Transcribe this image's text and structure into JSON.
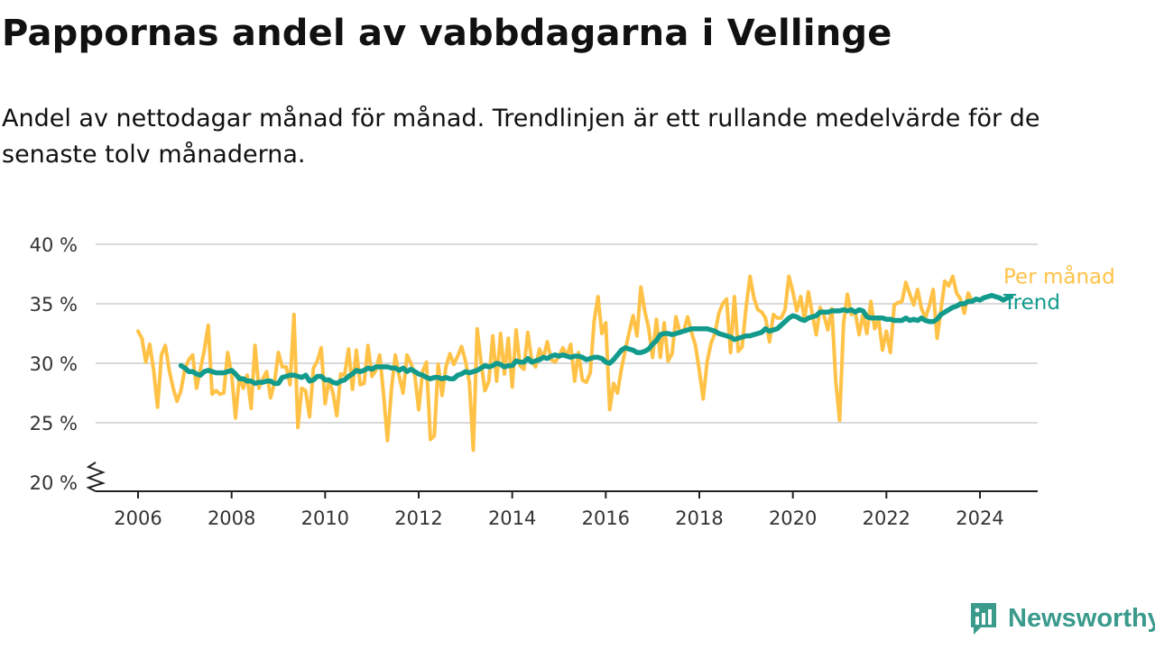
{
  "header": {
    "title": "Pappornas andel av vabbdagarna i Vellinge",
    "subtitle": "Andel av nettodagar månad för månad. Trendlinjen är ett rullande medelvärde för de senaste tolv månaderna."
  },
  "brand": {
    "name": "Newsworthy",
    "icon": "newsworthy-logo-icon",
    "color": "#3a9a8c"
  },
  "chart_data": {
    "type": "line",
    "title": "Pappornas andel av vabbdagarna i Vellinge",
    "x_ticks": [
      2006,
      2008,
      2010,
      2012,
      2014,
      2016,
      2018,
      2020,
      2022,
      2024
    ],
    "y_ticks": [
      20,
      25,
      30,
      35,
      40
    ],
    "y_tick_labels": [
      "20 %",
      "25 %",
      "30 %",
      "35 %",
      "40 %"
    ],
    "xlim": [
      2005.1,
      2025.2
    ],
    "ylim": [
      19.2,
      40
    ],
    "y_axis_break": true,
    "grid": "horizontal",
    "legend": "direct labels at line ends (right)",
    "series": [
      {
        "name": "Per månad",
        "color": "#ffc247",
        "start": 2006.0,
        "step_months": 1,
        "values": [
          32.7,
          32.1,
          30.1,
          31.6,
          29.4,
          26.3,
          30.7,
          31.5,
          29.4,
          27.9,
          26.8,
          27.7,
          29.5,
          30.3,
          30.7,
          27.9,
          29.5,
          31.1,
          33.2,
          27.4,
          27.7,
          27.4,
          27.5,
          30.9,
          29.1,
          25.4,
          28.9,
          27.9,
          29.0,
          26.2,
          31.5,
          27.9,
          28.7,
          29.3,
          27.1,
          28.4,
          30.9,
          29.7,
          29.7,
          28.2,
          34.1,
          24.6,
          27.9,
          27.7,
          25.5,
          29.6,
          30.2,
          31.3,
          26.6,
          28.6,
          27.5,
          25.6,
          29.1,
          29.0,
          31.2,
          27.8,
          31.1,
          28.2,
          28.3,
          31.5,
          28.9,
          29.4,
          30.7,
          27.4,
          23.5,
          27.8,
          30.7,
          28.9,
          27.5,
          30.7,
          30.0,
          29.0,
          26.1,
          29.3,
          30.1,
          23.6,
          23.9,
          29.9,
          27.3,
          29.7,
          30.8,
          29.9,
          30.6,
          31.4,
          30.2,
          28.4,
          22.7,
          32.9,
          30.1,
          27.7,
          28.5,
          32.3,
          28.5,
          32.5,
          29.1,
          32.1,
          28.0,
          32.8,
          29.8,
          29.5,
          32.6,
          30.2,
          29.7,
          31.2,
          30.4,
          31.8,
          30.3,
          30.1,
          30.6,
          31.3,
          30.6,
          31.6,
          28.5,
          30.9,
          28.6,
          28.4,
          29.2,
          33.5,
          35.6,
          32.5,
          33.4,
          26.1,
          28.3,
          27.5,
          29.5,
          31.1,
          32.6,
          34.0,
          32.3,
          36.4,
          34.4,
          33.0,
          30.5,
          33.7,
          30.5,
          33.4,
          30.2,
          30.8,
          33.9,
          32.6,
          32.7,
          33.9,
          32.6,
          31.5,
          29.4,
          27.0,
          30.1,
          31.7,
          32.5,
          34.2,
          35.0,
          35.4,
          30.9,
          35.6,
          31.0,
          31.4,
          34.7,
          37.3,
          35.5,
          34.5,
          34.3,
          33.8,
          31.8,
          34.1,
          33.8,
          33.8,
          34.5,
          37.3,
          36.0,
          34.4,
          35.6,
          33.7,
          36.0,
          34.1,
          32.4,
          34.7,
          34.0,
          32.8,
          34.6,
          28.5,
          25.2,
          33.3,
          35.8,
          34.1,
          34.3,
          32.4,
          34.1,
          32.5,
          35.2,
          32.9,
          33.7,
          31.1,
          32.7,
          30.9,
          34.9,
          35.1,
          35.2,
          36.8,
          35.8,
          34.9,
          36.2,
          34.6,
          33.8,
          34.8,
          36.2,
          32.1,
          34.5,
          36.9,
          36.5,
          37.3,
          35.9,
          35.4,
          34.2,
          35.9,
          35.2
        ]
      },
      {
        "name": "Trend",
        "color": "#129b8c",
        "start": 2006.917,
        "step_months": 1,
        "values": [
          29.8,
          29.6,
          29.3,
          29.3,
          29.1,
          29.0,
          29.3,
          29.4,
          29.3,
          29.2,
          29.2,
          29.2,
          29.3,
          29.4,
          29.1,
          28.7,
          28.7,
          28.5,
          28.5,
          28.3,
          28.4,
          28.4,
          28.5,
          28.5,
          28.3,
          28.3,
          28.8,
          28.9,
          29.0,
          29.0,
          28.9,
          28.8,
          29.0,
          28.5,
          28.6,
          28.9,
          28.9,
          28.6,
          28.6,
          28.4,
          28.3,
          28.5,
          28.6,
          28.9,
          29.1,
          29.4,
          29.3,
          29.4,
          29.6,
          29.5,
          29.7,
          29.7,
          29.7,
          29.7,
          29.6,
          29.6,
          29.4,
          29.6,
          29.3,
          29.5,
          29.3,
          29.1,
          29.0,
          28.8,
          28.7,
          28.8,
          28.8,
          28.7,
          28.8,
          28.7,
          28.7,
          29.0,
          29.1,
          29.3,
          29.2,
          29.3,
          29.4,
          29.6,
          29.8,
          29.7,
          29.8,
          30.0,
          29.9,
          29.7,
          29.8,
          29.8,
          30.2,
          30.1,
          30.1,
          30.4,
          30.1,
          30.2,
          30.3,
          30.5,
          30.4,
          30.6,
          30.7,
          30.6,
          30.7,
          30.6,
          30.5,
          30.6,
          30.6,
          30.5,
          30.3,
          30.4,
          30.5,
          30.5,
          30.4,
          30.1,
          30.0,
          30.3,
          30.7,
          31.1,
          31.3,
          31.2,
          31.1,
          30.9,
          30.9,
          31.0,
          31.2,
          31.6,
          31.9,
          32.4,
          32.5,
          32.5,
          32.4,
          32.5,
          32.6,
          32.7,
          32.8,
          32.9,
          32.9,
          32.9,
          32.9,
          32.9,
          32.8,
          32.7,
          32.5,
          32.4,
          32.3,
          32.2,
          32.0,
          32.1,
          32.2,
          32.3,
          32.3,
          32.4,
          32.5,
          32.6,
          32.9,
          32.7,
          32.8,
          32.9,
          33.2,
          33.5,
          33.8,
          34.0,
          33.9,
          33.7,
          33.6,
          33.8,
          33.9,
          34.0,
          34.3,
          34.3,
          34.3,
          34.4,
          34.4,
          34.4,
          34.5,
          34.4,
          34.5,
          34.3,
          34.5,
          34.4,
          33.9,
          33.8,
          33.8,
          33.8,
          33.8,
          33.7,
          33.7,
          33.6,
          33.6,
          33.6,
          33.8,
          33.6,
          33.7,
          33.6,
          33.8,
          33.6,
          33.5,
          33.5,
          33.7,
          34.1,
          34.3,
          34.5,
          34.7,
          34.8,
          35.0,
          35.0,
          35.2,
          35.2,
          35.4,
          35.3,
          35.5,
          35.6,
          35.7,
          35.6,
          35.5,
          35.3,
          35.5,
          35.6
        ]
      }
    ]
  }
}
